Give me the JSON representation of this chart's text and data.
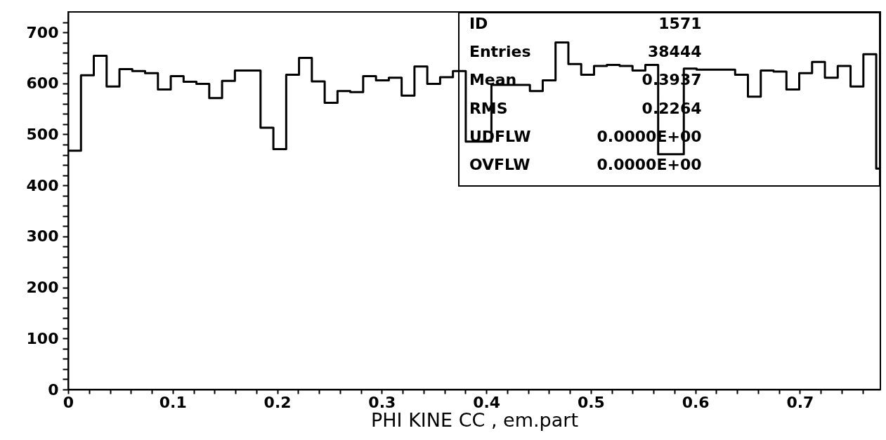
{
  "chart_data": {
    "type": "histogram",
    "xlabel": "PHI KINE CC , em.part",
    "color": "#000000",
    "bins": [
      0,
      0.01227,
      0.02454,
      0.03681,
      0.04908,
      0.06135,
      0.07362,
      0.08589,
      0.09816,
      0.11043,
      0.1227,
      0.13497,
      0.14724,
      0.15951,
      0.17178,
      0.18405,
      0.19632,
      0.20859,
      0.22086,
      0.23313,
      0.2454,
      0.25767,
      0.26994,
      0.28221,
      0.29448,
      0.30675,
      0.31902,
      0.33129,
      0.34356,
      0.35583,
      0.3681,
      0.38037,
      0.39264,
      0.40491,
      0.41718,
      0.42945,
      0.44172,
      0.45399,
      0.46626,
      0.47853,
      0.4908,
      0.50307,
      0.51534,
      0.52761,
      0.53988,
      0.55215,
      0.56442,
      0.57669,
      0.58896,
      0.60123,
      0.6135,
      0.62577,
      0.63804,
      0.65031,
      0.66258,
      0.67485,
      0.68712,
      0.69939,
      0.71166,
      0.72393,
      0.7362,
      0.74847,
      0.76074,
      0.77301,
      0.777
    ],
    "values": [
      468,
      616,
      654,
      594,
      628,
      624,
      620,
      588,
      614,
      603,
      599,
      571,
      605,
      625,
      625,
      513,
      471,
      617,
      650,
      604,
      562,
      585,
      583,
      614,
      606,
      611,
      576,
      633,
      599,
      612,
      624,
      486,
      486,
      597,
      597,
      597,
      585,
      606,
      680,
      638,
      617,
      634,
      636,
      634,
      625,
      636,
      461,
      461,
      629,
      627,
      627,
      627,
      617,
      574,
      625,
      623,
      588,
      620,
      642,
      611,
      634,
      594,
      657,
      433
    ],
    "xlim": [
      0,
      0.777
    ],
    "xticks": [
      0,
      {
        "value": 0.02,
        "label": null
      },
      {
        "value": 0.04,
        "label": null
      },
      {
        "value": 0.06,
        "label": null
      },
      {
        "value": 0.08,
        "label": null
      },
      0.1,
      {
        "value": 0.12,
        "label": null
      },
      {
        "value": 0.14,
        "label": null
      },
      {
        "value": 0.16,
        "label": null
      },
      {
        "value": 0.18,
        "label": null
      },
      0.2,
      {
        "value": 0.22,
        "label": null
      },
      {
        "value": 0.24,
        "label": null
      },
      {
        "value": 0.26,
        "label": null
      },
      {
        "value": 0.28,
        "label": null
      },
      0.3,
      {
        "value": 0.32,
        "label": null
      },
      {
        "value": 0.34,
        "label": null
      },
      {
        "value": 0.36,
        "label": null
      },
      {
        "value": 0.38,
        "label": null
      },
      0.4,
      {
        "value": 0.42,
        "label": null
      },
      {
        "value": 0.44,
        "label": null
      },
      {
        "value": 0.46,
        "label": null
      },
      {
        "value": 0.48,
        "label": null
      },
      0.5,
      {
        "value": 0.52,
        "label": null
      },
      {
        "value": 0.54,
        "label": null
      },
      {
        "value": 0.56,
        "label": null
      },
      {
        "value": 0.58,
        "label": null
      },
      0.6,
      {
        "value": 0.62,
        "label": null
      },
      {
        "value": 0.64,
        "label": null
      },
      {
        "value": 0.66,
        "label": null
      },
      {
        "value": 0.68,
        "label": null
      },
      0.7,
      {
        "value": 0.72,
        "label": null
      },
      {
        "value": 0.74,
        "label": null
      },
      {
        "value": 0.76,
        "label": null
      }
    ],
    "ylim": [
      0,
      740
    ],
    "yticks": [
      0,
      {
        "value": 20,
        "label": null
      },
      {
        "value": 40,
        "label": null
      },
      {
        "value": 60,
        "label": null
      },
      {
        "value": 80,
        "label": null
      },
      100,
      {
        "value": 120,
        "label": null
      },
      {
        "value": 140,
        "label": null
      },
      {
        "value": 160,
        "label": null
      },
      {
        "value": 180,
        "label": null
      },
      200,
      {
        "value": 220,
        "label": null
      },
      {
        "value": 240,
        "label": null
      },
      {
        "value": 260,
        "label": null
      },
      {
        "value": 280,
        "label": null
      },
      300,
      {
        "value": 320,
        "label": null
      },
      {
        "value": 340,
        "label": null
      },
      {
        "value": 360,
        "label": null
      },
      {
        "value": 380,
        "label": null
      },
      400,
      {
        "value": 420,
        "label": null
      },
      {
        "value": 440,
        "label": null
      },
      {
        "value": 460,
        "label": null
      },
      {
        "value": 480,
        "label": null
      },
      500,
      {
        "value": 520,
        "label": null
      },
      {
        "value": 540,
        "label": null
      },
      {
        "value": 560,
        "label": null
      },
      {
        "value": 580,
        "label": null
      },
      600,
      {
        "value": 620,
        "label": null
      },
      {
        "value": 640,
        "label": null
      },
      {
        "value": 660,
        "label": null
      },
      {
        "value": 680,
        "label": null
      },
      700,
      {
        "value": 720,
        "label": null
      }
    ],
    "annotations": [
      "ID",
      "1571",
      "Entries",
      "38444",
      "Mean",
      "0.3937",
      "RMS",
      "0.2264",
      "UDFLW",
      "0.0000E+00",
      "OVFLW",
      "0.0000E+00"
    ],
    "grid": false
  }
}
